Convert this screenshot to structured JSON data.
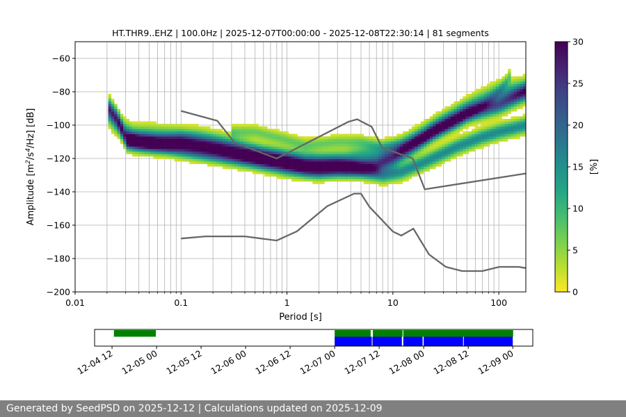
{
  "footer_text": "Generated by SeedPSD on 2025-12-12 | Calculations updated on 2025-12-09",
  "chart_data": [
    {
      "type": "heatmap",
      "title": "HT.THR9..EHZ | 100.0Hz | 2025-12-07T00:00:00 - 2025-12-08T22:30:14 | 81 segments",
      "xlabel": "Period [s]",
      "ylabel_parts": [
        "Amplitude [m",
        "2",
        "/s",
        "4",
        "/Hz] [dB]"
      ],
      "xscale": "log",
      "xlim": [
        0.01,
        180
      ],
      "ylim": [
        -200,
        -50
      ],
      "x_ticks": [
        {
          "v": 0.01,
          "label": "0.01"
        },
        {
          "v": 0.1,
          "label": "0.1"
        },
        {
          "v": 1,
          "label": "1"
        },
        {
          "v": 10,
          "label": "10"
        },
        {
          "v": 100,
          "label": "100"
        }
      ],
      "y_ticks": [
        {
          "v": -60,
          "label": "−60"
        },
        {
          "v": -80,
          "label": "−80"
        },
        {
          "v": -100,
          "label": "−100"
        },
        {
          "v": -120,
          "label": "−120"
        },
        {
          "v": -140,
          "label": "−140"
        },
        {
          "v": -160,
          "label": "−160"
        },
        {
          "v": -180,
          "label": "−180"
        },
        {
          "v": -200,
          "label": "−200"
        }
      ],
      "grid": true,
      "colorbar": {
        "label": "[%]",
        "range": [
          0,
          30
        ],
        "colormap": "viridis",
        "ticks": [
          {
            "v": 0,
            "label": "0"
          },
          {
            "v": 5,
            "label": "5"
          },
          {
            "v": 10,
            "label": "10"
          },
          {
            "v": 15,
            "label": "15"
          },
          {
            "v": 20,
            "label": "20"
          },
          {
            "v": 25,
            "label": "25"
          },
          {
            "v": 30,
            "label": "30"
          }
        ]
      },
      "reference_color": "#666666",
      "nhnm": {
        "period": [
          0.1,
          0.22,
          0.32,
          0.8,
          3.8,
          4.6,
          6.3,
          7.9,
          15.4,
          20,
          180
        ],
        "db": [
          -91.5,
          -97.4,
          -110.5,
          -120,
          -98,
          -96.5,
          -101,
          -113.5,
          -120,
          -138.5,
          -129
        ]
      },
      "nlnm": {
        "period": [
          0.1,
          0.17,
          0.4,
          0.8,
          1.24,
          2.4,
          4.3,
          5,
          6,
          10,
          12,
          15.6,
          21.9,
          31.6,
          45,
          70,
          101,
          154,
          180
        ],
        "db": [
          -168,
          -166.7,
          -166.7,
          -169.2,
          -163.7,
          -148.6,
          -141.1,
          -141.1,
          -149,
          -163.8,
          -166.2,
          -162.1,
          -177.5,
          -185,
          -187.5,
          -187.5,
          -185,
          -185,
          -185.7
        ]
      },
      "density_bands": [
        {
          "period": [
            0.02,
            0.025,
            0.03,
            0.04,
            0.06,
            0.1,
            0.2,
            0.4,
            0.8,
            1.5,
            3,
            5,
            7,
            10,
            15,
            25,
            50,
            100,
            180
          ],
          "db": [
            -88,
            -96,
            -108,
            -110,
            -111,
            -110,
            -113,
            -117,
            -120,
            -124,
            -124,
            -125,
            -124,
            -120,
            -113,
            -103,
            -93,
            -88,
            -80
          ],
          "sigma_db": 3.5,
          "max": 22
        },
        {
          "period": [
            0.03,
            0.06,
            0.1,
            0.2,
            0.5,
            1,
            2,
            3,
            5,
            8,
            12,
            20,
            40,
            70,
            100,
            180
          ],
          "db": [
            -110,
            -112,
            -115,
            -118,
            -122,
            -126,
            -128,
            -127,
            -127,
            -130,
            -128,
            -122,
            -113,
            -107,
            -104,
            -100
          ],
          "sigma_db": 3,
          "max": 16
        },
        {
          "period": [
            0.3,
            0.5,
            0.9,
            1.5,
            3,
            5,
            8,
            12,
            20,
            40,
            70,
            100,
            130
          ],
          "db": [
            -104,
            -104,
            -108,
            -112,
            -110,
            -110,
            -113,
            -112,
            -107,
            -98,
            -88,
            -80,
            -70
          ],
          "sigma_db": 2.5,
          "max": 7
        },
        {
          "period": [
            0.02,
            0.025,
            0.035,
            0.05,
            0.08,
            0.15,
            0.3,
            0.6,
            1,
            2,
            3.5,
            5,
            8,
            12,
            20,
            35,
            60,
            100,
            180
          ],
          "db": [
            -93,
            -100,
            -106,
            -106,
            -107,
            -108,
            -112,
            -118,
            -120,
            -122,
            -121,
            -118,
            -117,
            -113,
            -105,
            -96,
            -87,
            -80,
            -78
          ],
          "sigma_db": 4,
          "max": 10
        }
      ]
    },
    {
      "type": "timeline",
      "x_ticks": [
        "12-04 12",
        "12-05 00",
        "12-05 12",
        "12-06 00",
        "12-06 12",
        "12-07 00",
        "12-07 12",
        "12-08 00",
        "12-08 12",
        "12-09 00"
      ],
      "x_tick_hours": [
        12,
        24,
        36,
        48,
        60,
        72,
        84,
        96,
        108,
        120
      ],
      "xlim_hours": [
        7.3,
        125.4
      ],
      "data_available_color": "#008000",
      "segments_color": "#0000ff",
      "data_available": [
        [
          12.5,
          23.8
        ],
        [
          72,
          81.7
        ],
        [
          82.3,
          90.3
        ],
        [
          90.5,
          120.1
        ]
      ],
      "segments": [
        [
          72,
          82
        ],
        [
          82.2,
          90.1
        ],
        [
          90.5,
          95.7
        ],
        [
          96,
          106.6
        ],
        [
          106.8,
          120
        ]
      ]
    }
  ]
}
